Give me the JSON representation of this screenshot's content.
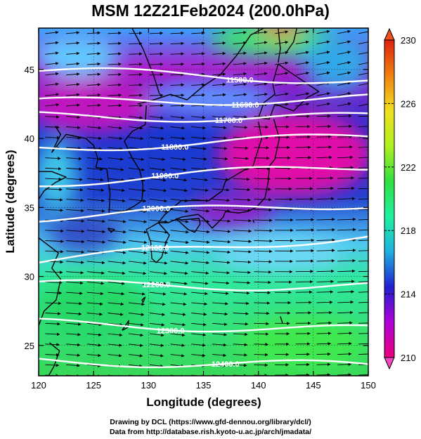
{
  "title": "MSM 12Z21Feb2024 (200.0hPa)",
  "xlabel": "Longitude (degrees)",
  "ylabel": "Latitude  (degrees)",
  "x_ticks": [
    "120",
    "125",
    "130",
    "135",
    "140",
    "145",
    "150"
  ],
  "y_ticks": [
    "25",
    "30",
    "35",
    "40",
    "45"
  ],
  "colorbar": {
    "min": 210,
    "max": 230,
    "tick_labels": [
      "230",
      "226",
      "222",
      "218",
      "214",
      "210"
    ],
    "colors": [
      "#e8007a",
      "#b000d8",
      "#2020d0",
      "#20b0e0",
      "#20f0a0",
      "#30e040",
      "#b0f020",
      "#f0e020",
      "#f08010",
      "#e02010"
    ]
  },
  "contours": [
    {
      "label": "11500.0",
      "lat_west": 44.9,
      "lat_east": 44.2
    },
    {
      "label": "11600.0",
      "lat_west": 42.6,
      "lat_east": 42.9
    },
    {
      "label": "11700.0",
      "lat_west": 41.6,
      "lat_east": 41.5
    },
    {
      "label": "11800.0",
      "lat_west": 39.3,
      "lat_east": 40.1
    },
    {
      "label": "11900.0",
      "lat_west": 36.8,
      "lat_east": 38.0
    },
    {
      "label": "12000.0",
      "lat_west": 34.3,
      "lat_east": 35.3
    },
    {
      "label": "12100.0",
      "lat_west": 31.1,
      "lat_east": 33.0
    },
    {
      "label": "12200.0",
      "lat_west": 29.4,
      "lat_east": 29.3
    },
    {
      "label": "12300.0",
      "lat_west": 26.6,
      "lat_east": 26.1
    },
    {
      "label": "12400.0",
      "lat_west": 23.9,
      "lat_east": 23.5
    }
  ],
  "credits": [
    "Drawing by DCL (https://www.gfd-dennou.org/library/dcl/)",
    "Data from http://database.rish.kyoto-u.ac.jp/arch/jmadata/"
  ]
}
